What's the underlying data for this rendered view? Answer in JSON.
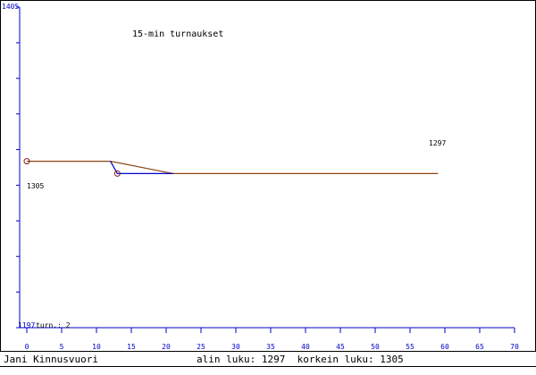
{
  "chart_data": {
    "type": "line",
    "title": "15-min turnaukset",
    "y_top_label": "1405",
    "y_bottom_label": "1197",
    "ylim": [
      1197,
      1405
    ],
    "xlim": [
      0,
      70
    ],
    "x_ticks": [
      0,
      5,
      10,
      15,
      20,
      25,
      30,
      35,
      40,
      45,
      50,
      55,
      60,
      65,
      70
    ],
    "turn_count_text": "turn.: 2",
    "start_label": "1305",
    "end_label": "1297",
    "series": [
      {
        "color": "#8b4513",
        "points": [
          [
            0,
            1305
          ],
          [
            12,
            1305
          ],
          [
            21,
            1297
          ],
          [
            59,
            1297
          ]
        ]
      },
      {
        "color": "#0000cc",
        "points": [
          [
            12,
            1305
          ],
          [
            13,
            1297
          ],
          [
            21,
            1297
          ]
        ]
      }
    ],
    "markers": [
      [
        0,
        1305
      ],
      [
        13,
        1297
      ]
    ],
    "axis_color": "#0000cc"
  },
  "footer": {
    "author": "Jani Kinnusvuori",
    "stats": "alin luku: 1297  korkein luku: 1305"
  }
}
